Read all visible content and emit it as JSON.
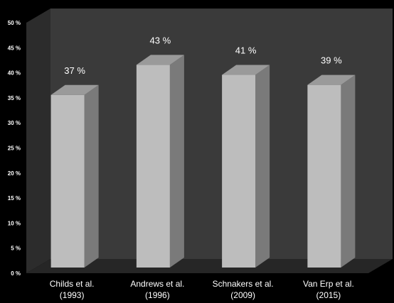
{
  "chart_data": {
    "type": "bar",
    "style": "3d",
    "categories": [
      [
        "Childs et al.",
        "(1993)"
      ],
      [
        "Andrews et al.",
        "(1996)"
      ],
      [
        "Schnakers et al.",
        "(2009)"
      ],
      [
        "Van Erp et al.",
        "(2015)"
      ]
    ],
    "values": [
      37,
      43,
      41,
      39
    ],
    "data_labels": [
      "37 %",
      "43 %",
      "41 %",
      "39 %"
    ],
    "y_ticks": [
      "0 %",
      "5 %",
      "10 %",
      "15 %",
      "20 %",
      "25 %",
      "30 %",
      "35 %",
      "40 %",
      "45 %",
      "50 %"
    ],
    "ylim": [
      0,
      50
    ],
    "grid": false,
    "legend": "none",
    "colors": {
      "background": "#000000",
      "back_wall": "#3a3a3a",
      "side_wall": "#2c2c2c",
      "floor": "#262626",
      "bar_front": "#bdbdbd",
      "bar_side": "#7a7a7a",
      "bar_top": "#9a9a9a"
    }
  }
}
